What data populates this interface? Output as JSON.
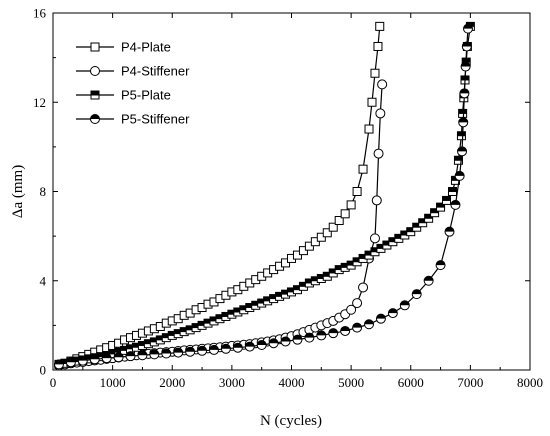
{
  "chart_data": {
    "type": "line",
    "xlabel": "N  (cycles)",
    "ylabel": "Δa (mm)",
    "xlim": [
      0,
      8000
    ],
    "ylim": [
      0,
      16
    ],
    "xticks": [
      0,
      1000,
      2000,
      3000,
      4000,
      5000,
      6000,
      7000,
      8000
    ],
    "yticks": [
      0,
      4,
      8,
      12,
      16
    ],
    "grid": false,
    "legend_position": "top-left",
    "series": [
      {
        "name": "P4-Plate",
        "marker": "square-open",
        "x": [
          100,
          200,
          300,
          400,
          500,
          600,
          700,
          800,
          900,
          1000,
          1100,
          1200,
          1300,
          1400,
          1500,
          1600,
          1700,
          1800,
          1900,
          2000,
          2100,
          2200,
          2300,
          2400,
          2500,
          2600,
          2700,
          2800,
          2900,
          3000,
          3100,
          3200,
          3300,
          3400,
          3500,
          3600,
          3700,
          3800,
          3900,
          4000,
          4100,
          4200,
          4300,
          4400,
          4500,
          4600,
          4700,
          4800,
          4900,
          5000,
          5100,
          5200,
          5300,
          5350,
          5400,
          5450,
          5480
        ],
        "y": [
          0.25,
          0.3,
          0.4,
          0.5,
          0.6,
          0.7,
          0.8,
          0.9,
          1.0,
          1.1,
          1.2,
          1.35,
          1.45,
          1.55,
          1.65,
          1.75,
          1.85,
          1.95,
          2.1,
          2.2,
          2.3,
          2.45,
          2.55,
          2.7,
          2.8,
          2.95,
          3.05,
          3.2,
          3.35,
          3.5,
          3.6,
          3.75,
          3.9,
          4.05,
          4.2,
          4.35,
          4.5,
          4.65,
          4.8,
          5.0,
          5.15,
          5.35,
          5.55,
          5.75,
          5.95,
          6.15,
          6.4,
          6.7,
          7.0,
          7.4,
          8.0,
          9.0,
          10.8,
          12.0,
          13.3,
          14.5,
          15.4
        ]
      },
      {
        "name": "P4-Stiffener",
        "marker": "circle-open",
        "x": [
          100,
          200,
          300,
          400,
          500,
          600,
          700,
          800,
          900,
          1000,
          1100,
          1200,
          1300,
          1400,
          1500,
          1600,
          1700,
          1800,
          1900,
          2000,
          2100,
          2200,
          2300,
          2400,
          2500,
          2600,
          2700,
          2800,
          2900,
          3000,
          3100,
          3200,
          3300,
          3400,
          3500,
          3600,
          3700,
          3800,
          3900,
          4000,
          4100,
          4200,
          4300,
          4400,
          4500,
          4600,
          4700,
          4800,
          4900,
          5000,
          5100,
          5200,
          5300,
          5400,
          5430,
          5460,
          5490,
          5520
        ],
        "y": [
          0.2,
          0.25,
          0.3,
          0.33,
          0.36,
          0.4,
          0.43,
          0.46,
          0.5,
          0.53,
          0.56,
          0.6,
          0.63,
          0.66,
          0.7,
          0.72,
          0.75,
          0.78,
          0.8,
          0.82,
          0.85,
          0.88,
          0.9,
          0.92,
          0.95,
          0.97,
          1.0,
          1.02,
          1.05,
          1.08,
          1.1,
          1.13,
          1.16,
          1.2,
          1.24,
          1.28,
          1.33,
          1.38,
          1.45,
          1.52,
          1.6,
          1.7,
          1.8,
          1.9,
          2.0,
          2.1,
          2.2,
          2.35,
          2.5,
          2.7,
          3.0,
          3.7,
          5.0,
          5.9,
          7.6,
          9.7,
          11.5,
          12.8
        ]
      },
      {
        "name": "P5-Plate",
        "marker": "square-filled",
        "x": [
          100,
          200,
          300,
          400,
          500,
          600,
          700,
          800,
          900,
          1000,
          1100,
          1200,
          1300,
          1400,
          1500,
          1600,
          1700,
          1800,
          1900,
          2000,
          2100,
          2200,
          2300,
          2400,
          2500,
          2600,
          2700,
          2800,
          2900,
          3000,
          3100,
          3200,
          3300,
          3400,
          3500,
          3600,
          3700,
          3800,
          3900,
          4000,
          4100,
          4200,
          4300,
          4400,
          4500,
          4600,
          4700,
          4800,
          4900,
          5000,
          5100,
          5200,
          5300,
          5400,
          5500,
          5600,
          5700,
          5800,
          5900,
          6000,
          6100,
          6200,
          6300,
          6400,
          6500,
          6600,
          6700,
          6750,
          6800,
          6850,
          6870,
          6890,
          6910,
          6930,
          6950,
          7000
        ],
        "y": [
          0.25,
          0.3,
          0.35,
          0.4,
          0.45,
          0.5,
          0.55,
          0.6,
          0.65,
          0.72,
          0.8,
          0.88,
          0.95,
          1.02,
          1.1,
          1.18,
          1.26,
          1.35,
          1.45,
          1.55,
          1.63,
          1.72,
          1.8,
          1.9,
          2.0,
          2.1,
          2.2,
          2.3,
          2.4,
          2.5,
          2.6,
          2.7,
          2.8,
          2.9,
          3.0,
          3.1,
          3.2,
          3.3,
          3.4,
          3.5,
          3.6,
          3.75,
          3.9,
          4.0,
          4.1,
          4.2,
          4.35,
          4.5,
          4.6,
          4.7,
          4.85,
          5.0,
          5.15,
          5.3,
          5.45,
          5.6,
          5.75,
          5.9,
          6.05,
          6.2,
          6.4,
          6.6,
          6.8,
          7.05,
          7.3,
          7.6,
          8.0,
          8.5,
          9.4,
          10.5,
          11.5,
          12.2,
          13.0,
          13.8,
          14.5,
          15.4
        ]
      },
      {
        "name": "P5-Stiffener",
        "marker": "circle-half-filled",
        "x": [
          100,
          300,
          500,
          700,
          900,
          1100,
          1300,
          1500,
          1700,
          1900,
          2100,
          2300,
          2500,
          2700,
          2900,
          3100,
          3300,
          3500,
          3700,
          3900,
          4100,
          4300,
          4500,
          4700,
          4900,
          5100,
          5300,
          5500,
          5700,
          5900,
          6100,
          6300,
          6500,
          6650,
          6750,
          6820,
          6860,
          6880,
          6900,
          6920,
          6940,
          6960
        ],
        "y": [
          0.25,
          0.35,
          0.42,
          0.48,
          0.53,
          0.57,
          0.62,
          0.66,
          0.7,
          0.74,
          0.78,
          0.82,
          0.86,
          0.9,
          0.95,
          1.0,
          1.05,
          1.12,
          1.2,
          1.28,
          1.36,
          1.45,
          1.55,
          1.65,
          1.75,
          1.9,
          2.05,
          2.3,
          2.55,
          2.9,
          3.4,
          4.0,
          4.7,
          6.2,
          7.4,
          8.7,
          9.8,
          11.1,
          12.4,
          13.6,
          14.5,
          15.3
        ]
      }
    ]
  }
}
